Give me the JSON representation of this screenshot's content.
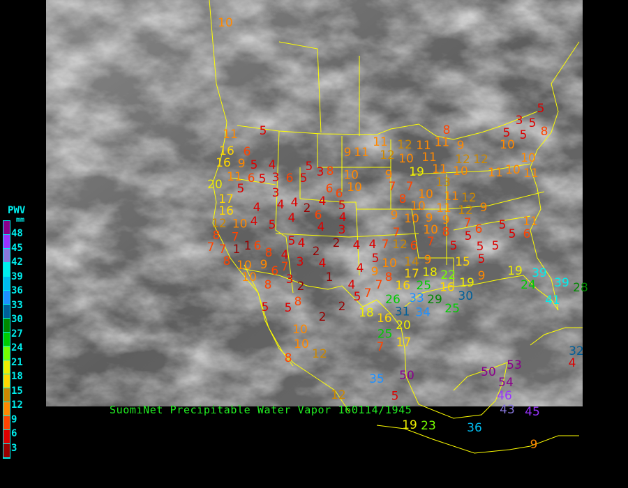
{
  "title": "SuomiNet Precipitable Water Vapor 160114/1945",
  "legend": {
    "title": "PWV",
    "unit": "mm",
    "labels": [
      "48",
      "45",
      "42",
      "39",
      "36",
      "33",
      "30",
      "27",
      "24",
      "21",
      "18",
      "15",
      "12",
      "9",
      "6",
      "3"
    ],
    "colors_top_to_bottom": [
      "#8b008b",
      "#9933ff",
      "#8877dd",
      "#00eeee",
      "#00bbee",
      "#1e90ff",
      "#005f99",
      "#008800",
      "#00cc00",
      "#77ff00",
      "#eeee00",
      "#ffd700",
      "#cc8800",
      "#ff8800",
      "#ff4400",
      "#dd0000",
      "#990000"
    ]
  },
  "map": {
    "border_color": "#ffff00",
    "background": "grayscale IR satellite"
  },
  "stations": [
    10,
    5,
    11,
    16,
    6,
    9,
    5,
    4,
    16,
    6,
    5,
    3,
    6,
    5,
    5,
    3,
    8,
    11,
    20,
    5,
    3,
    6,
    6,
    10,
    17,
    16,
    4,
    4,
    4,
    2,
    4,
    5,
    6,
    4,
    12,
    10,
    8,
    7,
    4,
    5,
    4,
    4,
    3,
    7,
    7,
    8,
    1,
    1,
    6,
    8,
    9,
    5,
    4,
    4,
    7,
    3,
    2,
    4,
    2,
    4,
    4,
    7,
    5,
    9,
    4,
    1,
    10,
    10,
    6,
    8,
    3,
    2,
    5,
    5,
    8,
    2,
    10,
    10,
    12,
    8,
    2,
    5,
    4,
    7,
    7,
    8,
    9,
    11,
    11,
    12,
    10,
    12,
    11,
    11,
    11,
    8,
    9,
    19,
    11,
    10,
    13,
    12,
    12,
    9,
    7,
    7,
    10,
    8,
    10,
    10,
    9,
    10,
    9,
    11,
    11,
    12,
    12,
    9,
    7,
    9,
    10,
    8,
    7,
    7,
    12,
    6,
    5,
    6,
    5,
    5,
    5,
    5,
    5,
    5,
    6,
    11,
    15,
    14,
    9,
    10,
    9,
    19,
    17,
    18,
    22,
    25,
    16,
    19,
    16,
    26,
    33,
    29,
    30,
    34,
    25,
    24,
    39,
    39,
    41,
    28,
    31,
    20,
    16,
    18,
    25,
    17,
    7,
    35,
    50,
    50,
    53,
    54,
    46,
    43,
    45,
    4,
    32,
    19,
    23,
    36,
    9,
    12,
    5,
    5,
    3,
    5,
    5,
    5,
    8,
    10,
    10,
    10,
    11,
    11
  ]
}
